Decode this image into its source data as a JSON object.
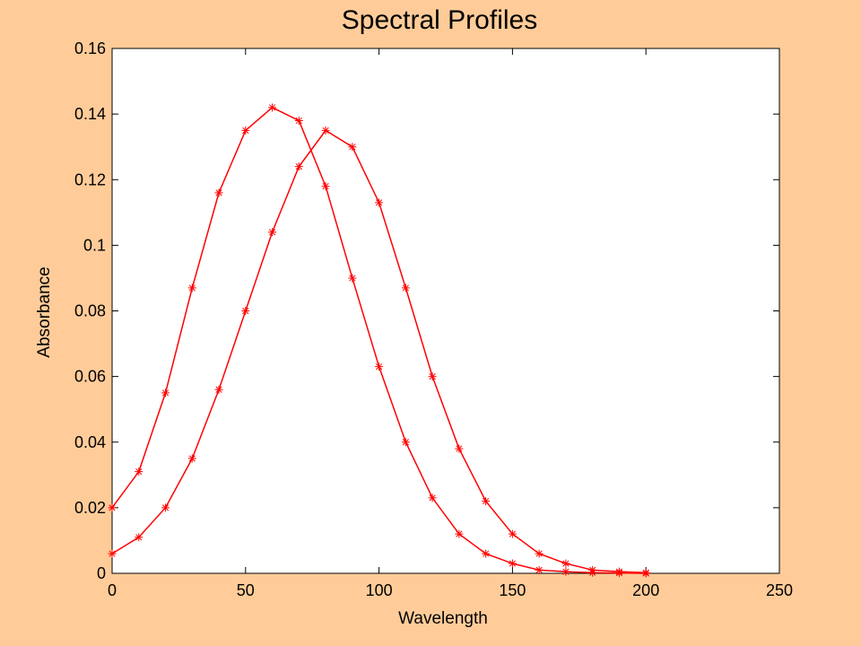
{
  "chart_data": {
    "type": "scatter",
    "title": "Spectral Profiles",
    "xlabel": "Wavelength",
    "ylabel": "Absorbance",
    "xlim": [
      0,
      250
    ],
    "ylim": [
      0,
      0.16
    ],
    "xticks": [
      0,
      50,
      100,
      150,
      200,
      250
    ],
    "xtick_labels": [
      "0",
      "50",
      "100",
      "150",
      "200",
      "250"
    ],
    "yticks": [
      0,
      0.02,
      0.04,
      0.06,
      0.08,
      0.1,
      0.12,
      0.14,
      0.16
    ],
    "ytick_labels": [
      "0",
      "0.02",
      "0.04",
      "0.06",
      "0.08",
      "0.1",
      "0.12",
      "0.14",
      "0.16"
    ],
    "grid": false,
    "legend": "none",
    "marker": "*",
    "series_color": "#FF0000",
    "background_color": "#FFCC99",
    "plot_background": "#FFFFFF",
    "series": [
      {
        "x": [
          0,
          10,
          20,
          30,
          40,
          50,
          60,
          70,
          80,
          90,
          100,
          110,
          120,
          130,
          140,
          150,
          160,
          170,
          180,
          190,
          200
        ],
        "values": [
          0.02,
          0.031,
          0.055,
          0.087,
          0.116,
          0.135,
          0.142,
          0.138,
          0.118,
          0.09,
          0.063,
          0.04,
          0.023,
          0.012,
          0.006,
          0.003,
          0.001,
          0.0005,
          0.0002,
          0.0001,
          0.0
        ]
      },
      {
        "x": [
          0,
          10,
          20,
          30,
          40,
          50,
          60,
          70,
          80,
          90,
          100,
          110,
          120,
          130,
          140,
          150,
          160,
          170,
          180,
          190,
          200
        ],
        "values": [
          0.006,
          0.011,
          0.02,
          0.035,
          0.056,
          0.08,
          0.104,
          0.124,
          0.135,
          0.13,
          0.113,
          0.087,
          0.06,
          0.038,
          0.022,
          0.012,
          0.006,
          0.003,
          0.001,
          0.0005,
          0.0002
        ]
      }
    ]
  }
}
